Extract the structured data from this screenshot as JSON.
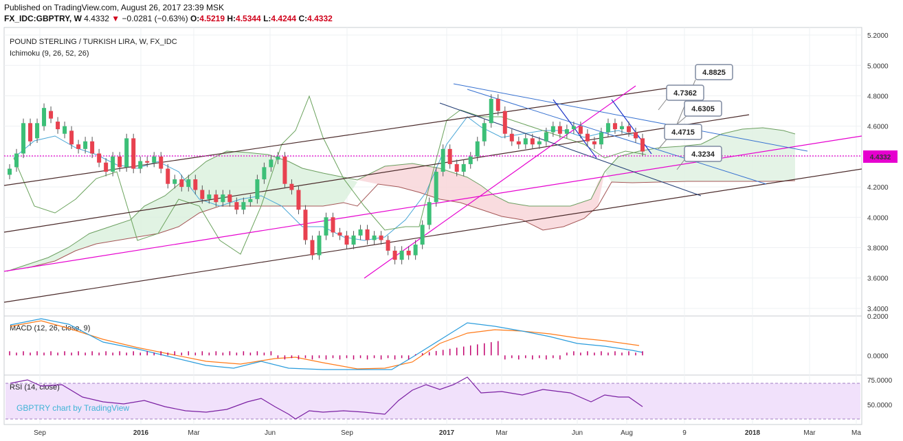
{
  "header": {
    "line1": "Published on TradingView.com, August 26, 2017 23:39 MSK",
    "symbol": "FX_IDC:GBPTRY, W",
    "last": "4.4332",
    "change": "−0.0281 (−0.63%)",
    "ohlc_o_label": "O:",
    "ohlc_o": "4.5219",
    "ohlc_h_label": "H:",
    "ohlc_h": "4.5344",
    "ohlc_l_label": "L:",
    "ohlc_l": "4.4244",
    "ohlc_c_label": "C:",
    "ohlc_c": "4.4332"
  },
  "colors": {
    "up": "#3cbf77",
    "down": "#e8414f",
    "grid": "#eef0f3",
    "price_line": "#e600cf",
    "macd": "#2a9cdc",
    "signal": "#ff7a18",
    "hist": "#c2006d",
    "rsi": "#7a1fa2",
    "rsi_band": "#f1e1fb"
  },
  "chart_data": [
    {
      "type": "candlestick",
      "title": "POUND STERLING / TURKISH LIRA, W, FX_IDC",
      "indicator": "Ichimoku (9, 26, 52, 26)",
      "ylim": [
        3.35,
        5.25
      ],
      "y_ticks": [
        "5.2000",
        "5.0000",
        "4.8000",
        "4.6000",
        "4.4000",
        "4.2000",
        "4.0000",
        "3.8000",
        "3.6000",
        "3.4000"
      ],
      "x_ticks": [
        "Sep",
        "2016",
        "Mar",
        "Jun",
        "Sep",
        "2017",
        "Mar",
        "Jun",
        "Aug",
        "9",
        "2018",
        "Mar",
        "Ma"
      ],
      "last_price_label": "4.4332",
      "last_price": 4.4332,
      "candles": [
        [
          4.28,
          4.32
        ],
        [
          4.33,
          4.42
        ],
        [
          4.42,
          4.62
        ],
        [
          4.62,
          4.5
        ],
        [
          4.52,
          4.62
        ],
        [
          4.6,
          4.72
        ],
        [
          4.7,
          4.65
        ],
        [
          4.63,
          4.58
        ],
        [
          4.55,
          4.6
        ],
        [
          4.57,
          4.48
        ],
        [
          4.48,
          4.45
        ],
        [
          4.45,
          4.5
        ],
        [
          4.5,
          4.42
        ],
        [
          4.42,
          4.36
        ],
        [
          4.36,
          4.3
        ],
        [
          4.3,
          4.4
        ],
        [
          4.4,
          4.33
        ],
        [
          4.33,
          4.52
        ],
        [
          4.52,
          4.32
        ],
        [
          4.32,
          4.37
        ],
        [
          4.37,
          4.36
        ],
        [
          4.36,
          4.4
        ],
        [
          4.4,
          4.32
        ],
        [
          4.32,
          4.22
        ],
        [
          4.22,
          4.25
        ],
        [
          4.25,
          4.2
        ],
        [
          4.2,
          4.25
        ],
        [
          4.25,
          4.18
        ],
        [
          4.18,
          4.12
        ],
        [
          4.12,
          4.15
        ],
        [
          4.15,
          4.1
        ],
        [
          4.1,
          4.15
        ],
        [
          4.15,
          4.1
        ],
        [
          4.1,
          4.05
        ],
        [
          4.05,
          4.1
        ],
        [
          4.1,
          4.12
        ],
        [
          4.12,
          4.25
        ],
        [
          4.25,
          4.33
        ],
        [
          4.33,
          4.38
        ],
        [
          4.38,
          4.4
        ],
        [
          4.4,
          4.22
        ],
        [
          4.22,
          4.18
        ],
        [
          4.18,
          4.05
        ],
        [
          4.05,
          3.85
        ],
        [
          3.85,
          3.75
        ],
        [
          3.75,
          3.88
        ],
        [
          3.88,
          4.0
        ],
        [
          4.0,
          3.9
        ],
        [
          3.9,
          3.88
        ],
        [
          3.88,
          3.82
        ],
        [
          3.82,
          3.88
        ],
        [
          3.88,
          3.92
        ],
        [
          3.92,
          3.85
        ],
        [
          3.85,
          3.88
        ],
        [
          3.88,
          3.85
        ],
        [
          3.85,
          3.78
        ],
        [
          3.78,
          3.72
        ],
        [
          3.72,
          3.78
        ],
        [
          3.78,
          3.75
        ],
        [
          3.75,
          3.82
        ],
        [
          3.82,
          3.95
        ],
        [
          3.95,
          4.1
        ],
        [
          4.1,
          4.3
        ],
        [
          4.3,
          4.45
        ],
        [
          4.45,
          4.35
        ],
        [
          4.35,
          4.3
        ],
        [
          4.3,
          4.35
        ],
        [
          4.35,
          4.4
        ],
        [
          4.4,
          4.5
        ],
        [
          4.5,
          4.62
        ],
        [
          4.62,
          4.78
        ],
        [
          4.78,
          4.7
        ],
        [
          4.7,
          4.55
        ],
        [
          4.55,
          4.5
        ],
        [
          4.5,
          4.48
        ],
        [
          4.48,
          4.52
        ],
        [
          4.52,
          4.48
        ],
        [
          4.48,
          4.5
        ],
        [
          4.5,
          4.56
        ],
        [
          4.56,
          4.6
        ],
        [
          4.6,
          4.55
        ],
        [
          4.55,
          4.58
        ],
        [
          4.58,
          4.6
        ],
        [
          4.6,
          4.55
        ],
        [
          4.55,
          4.5
        ],
        [
          4.5,
          4.48
        ],
        [
          4.48,
          4.56
        ],
        [
          4.56,
          4.62
        ],
        [
          4.62,
          4.58
        ],
        [
          4.58,
          4.6
        ],
        [
          4.6,
          4.56
        ],
        [
          4.56,
          4.52
        ],
        [
          4.52,
          4.4332
        ]
      ]
    },
    {
      "type": "line",
      "title": "MACD (12, 26, close, 9)",
      "y_ticks": [
        "0.2000",
        "0.0000"
      ],
      "ylim": [
        -0.1,
        0.2
      ]
    },
    {
      "type": "line",
      "title": "RSI (14, close)",
      "watermark": "GBPTRY chart by TradingView",
      "y_ticks": [
        "75.0000",
        "50.0000"
      ],
      "ylim": [
        30,
        80
      ],
      "band": [
        30,
        70
      ]
    }
  ],
  "callouts": [
    {
      "label": "4.8825"
    },
    {
      "label": "4.7362"
    },
    {
      "label": "4.6305"
    },
    {
      "label": "4.4715"
    },
    {
      "label": "4.3234"
    }
  ]
}
